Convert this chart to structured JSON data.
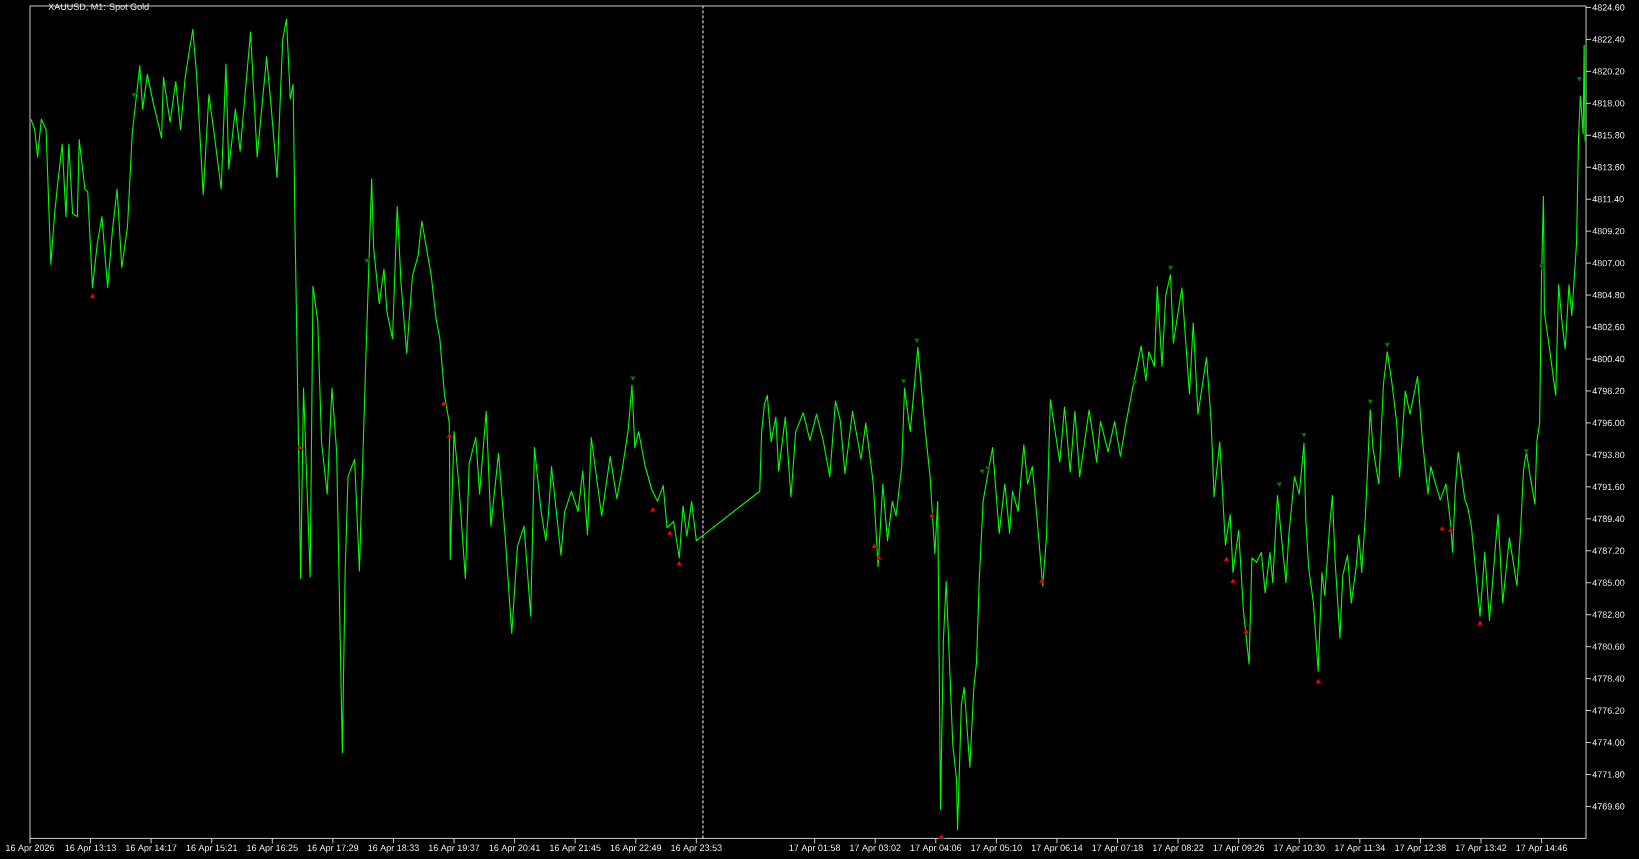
{
  "chart_data": {
    "type": "line",
    "title": "XAUUSD, M1: Spot Gold",
    "xlim": [
      "2026-04-16T12:09",
      "2026-04-17T15:33"
    ],
    "xticks": [
      {
        "value": "2026-04-16T12:09",
        "label": "16 Apr 2026"
      },
      {
        "value": "2026-04-16T13:13",
        "label": "16 Apr 13:13"
      },
      {
        "value": "2026-04-16T14:17",
        "label": "16 Apr 14:17"
      },
      {
        "value": "2026-04-16T15:21",
        "label": "16 Apr 15:21"
      },
      {
        "value": "2026-04-16T16:25",
        "label": "16 Apr 16:25"
      },
      {
        "value": "2026-04-16T17:29",
        "label": "16 Apr 17:29"
      },
      {
        "value": "2026-04-16T18:33",
        "label": "16 Apr 18:33"
      },
      {
        "value": "2026-04-16T19:37",
        "label": "16 Apr 19:37"
      },
      {
        "value": "2026-04-16T20:41",
        "label": "16 Apr 20:41"
      },
      {
        "value": "2026-04-16T21:45",
        "label": "16 Apr 21:45"
      },
      {
        "value": "2026-04-16T22:49",
        "label": "16 Apr 22:49"
      },
      {
        "value": "2026-04-16T23:53",
        "label": "16 Apr 23:53"
      },
      {
        "value": "2026-04-17T01:58",
        "label": "17 Apr 01:58"
      },
      {
        "value": "2026-04-17T03:02",
        "label": "17 Apr 03:02"
      },
      {
        "value": "2026-04-17T04:06",
        "label": "17 Apr 04:06"
      },
      {
        "value": "2026-04-17T05:10",
        "label": "17 Apr 05:10"
      },
      {
        "value": "2026-04-17T06:14",
        "label": "17 Apr 06:14"
      },
      {
        "value": "2026-04-17T07:18",
        "label": "17 Apr 07:18"
      },
      {
        "value": "2026-04-17T08:22",
        "label": "17 Apr 08:22"
      },
      {
        "value": "2026-04-17T09:26",
        "label": "17 Apr 09:26"
      },
      {
        "value": "2026-04-17T10:30",
        "label": "17 Apr 10:30"
      },
      {
        "value": "2026-04-17T11:34",
        "label": "17 Apr 11:34"
      },
      {
        "value": "2026-04-17T12:38",
        "label": "17 Apr 12:38"
      },
      {
        "value": "2026-04-17T13:42",
        "label": "17 Apr 13:42"
      },
      {
        "value": "2026-04-17T14:46",
        "label": "17 Apr 14:46"
      }
    ],
    "ylim": [
      4767.4,
      4824.7
    ],
    "yticks": [
      {
        "value": 4769.6,
        "label": "4769.60"
      },
      {
        "value": 4771.8,
        "label": "4771.80"
      },
      {
        "value": 4774.0,
        "label": "4774.00"
      },
      {
        "value": 4776.2,
        "label": "4776.20"
      },
      {
        "value": 4778.4,
        "label": "4778.40"
      },
      {
        "value": 4780.6,
        "label": "4780.60"
      },
      {
        "value": 4782.8,
        "label": "4782.80"
      },
      {
        "value": 4785.0,
        "label": "4785.00"
      },
      {
        "value": 4787.2,
        "label": "4787.20"
      },
      {
        "value": 4789.4,
        "label": "4789.40"
      },
      {
        "value": 4791.6,
        "label": "4791.60"
      },
      {
        "value": 4793.8,
        "label": "4793.80"
      },
      {
        "value": 4796.0,
        "label": "4796.00"
      },
      {
        "value": 4798.2,
        "label": "4798.20"
      },
      {
        "value": 4800.4,
        "label": "4800.40"
      },
      {
        "value": 4802.6,
        "label": "4802.60"
      },
      {
        "value": 4804.8,
        "label": "4804.80"
      },
      {
        "value": 4807.0,
        "label": "4807.00"
      },
      {
        "value": 4809.2,
        "label": "4809.20"
      },
      {
        "value": 4811.4,
        "label": "4811.40"
      },
      {
        "value": 4813.6,
        "label": "4813.60"
      },
      {
        "value": 4815.8,
        "label": "4815.80"
      },
      {
        "value": 4818.0,
        "label": "4818.00"
      },
      {
        "value": 4820.2,
        "label": "4820.20"
      },
      {
        "value": 4822.4,
        "label": "4822.40"
      },
      {
        "value": 4824.6,
        "label": "4824.60"
      }
    ],
    "ref_lines": [
      {
        "axis": "x",
        "value": "2026-04-17T00:00",
        "color": "#ffffff",
        "line_style": "dashed"
      }
    ],
    "series": [
      {
        "color": "#00ff00",
        "x": [
          "2026-04-16T12:10",
          "2026-04-16T12:14",
          "2026-04-16T12:17",
          "2026-04-16T12:21",
          "2026-04-16T12:26",
          "2026-04-16T12:31",
          "2026-04-16T12:35",
          "2026-04-16T12:38",
          "2026-04-16T12:43",
          "2026-04-16T12:47",
          "2026-04-16T12:50",
          "2026-04-16T12:54",
          "2026-04-16T12:59",
          "2026-04-16T13:01",
          "2026-04-16T13:04",
          "2026-04-16T13:07",
          "2026-04-16T13:10",
          "2026-04-16T13:15",
          "2026-04-16T13:20",
          "2026-04-16T13:25",
          "2026-04-16T13:31",
          "2026-04-16T13:36",
          "2026-04-16T13:41",
          "2026-04-16T13:46",
          "2026-04-16T13:52",
          "2026-04-16T13:57",
          "2026-04-16T14:05",
          "2026-04-16T14:08",
          "2026-04-16T14:13",
          "2026-04-16T14:19",
          "2026-04-16T14:28",
          "2026-04-16T14:30",
          "2026-04-16T14:37",
          "2026-04-16T14:43",
          "2026-04-16T14:48",
          "2026-04-16T14:53",
          "2026-04-16T15:01",
          "2026-04-16T15:05",
          "2026-04-16T15:12",
          "2026-04-16T15:18",
          "2026-04-16T15:23",
          "2026-04-16T15:31",
          "2026-04-16T15:36",
          "2026-04-16T15:39",
          "2026-04-16T15:46",
          "2026-04-16T15:51",
          "2026-04-16T16:02",
          "2026-04-16T16:09",
          "2026-04-16T16:19",
          "2026-04-16T16:24",
          "2026-04-16T16:30",
          "2026-04-16T16:36",
          "2026-04-16T16:40",
          "2026-04-16T16:44",
          "2026-04-16T16:47",
          "2026-04-16T16:49",
          "2026-04-16T16:55",
          "2026-04-16T16:58",
          "2026-04-16T17:05",
          "2026-04-16T17:08",
          "2026-04-16T17:13",
          "2026-04-16T17:17",
          "2026-04-16T17:23",
          "2026-04-16T17:28",
          "2026-04-16T17:33",
          "2026-04-16T17:39",
          "2026-04-16T17:42",
          "2026-04-16T17:45",
          "2026-04-16T17:52",
          "2026-04-16T17:57",
          "2026-04-16T18:04",
          "2026-04-16T18:10",
          "2026-04-16T18:12",
          "2026-04-16T18:18",
          "2026-04-16T18:23",
          "2026-04-16T18:26",
          "2026-04-16T18:32",
          "2026-04-16T18:37",
          "2026-04-16T18:41",
          "2026-04-16T18:47",
          "2026-04-16T18:53",
          "2026-04-16T18:59",
          "2026-04-16T19:03",
          "2026-04-16T19:08",
          "2026-04-16T19:13",
          "2026-04-16T19:18",
          "2026-04-16T19:22",
          "2026-04-16T19:27",
          "2026-04-16T19:32",
          "2026-04-16T19:33",
          "2026-04-16T19:37",
          "2026-04-16T19:42",
          "2026-04-16T19:49",
          "2026-04-16T19:53",
          "2026-04-16T20:00",
          "2026-04-16T20:04",
          "2026-04-16T20:11",
          "2026-04-16T20:16",
          "2026-04-16T20:24",
          "2026-04-16T20:31",
          "2026-04-16T20:38",
          "2026-04-16T20:44",
          "2026-04-16T20:51",
          "2026-04-16T20:58",
          "2026-04-16T21:02",
          "2026-04-16T21:09",
          "2026-04-16T21:14",
          "2026-04-16T21:17",
          "2026-04-16T21:20",
          "2026-04-16T21:30",
          "2026-04-16T21:34",
          "2026-04-16T21:41",
          "2026-04-16T21:48",
          "2026-04-16T21:53",
          "2026-04-16T21:58",
          "2026-04-16T22:02",
          "2026-04-16T22:13",
          "2026-04-16T22:22",
          "2026-04-16T22:29",
          "2026-04-16T22:34",
          "2026-04-16T22:41",
          "2026-04-16T22:45",
          "2026-04-16T22:48",
          "2026-04-16T22:52",
          "2026-04-16T22:59",
          "2026-04-16T23:06",
          "2026-04-16T23:12",
          "2026-04-16T23:18",
          "2026-04-16T23:22",
          "2026-04-16T23:29",
          "2026-04-16T23:35",
          "2026-04-16T23:39",
          "2026-04-16T23:43",
          "2026-04-16T23:48",
          "2026-04-16T23:53",
          "2026-04-17T01:00",
          "2026-04-17T01:02",
          "2026-04-17T01:05",
          "2026-04-17T01:08",
          "2026-04-17T01:12",
          "2026-04-17T01:17",
          "2026-04-17T01:20",
          "2026-04-17T01:27",
          "2026-04-17T01:33",
          "2026-04-17T01:38",
          "2026-04-17T01:46",
          "2026-04-17T01:53",
          "2026-04-17T02:00",
          "2026-04-17T02:07",
          "2026-04-17T02:14",
          "2026-04-17T02:20",
          "2026-04-17T02:25",
          "2026-04-17T02:30",
          "2026-04-17T02:38",
          "2026-04-17T02:47",
          "2026-04-17T02:52",
          "2026-04-17T03:00",
          "2026-04-17T03:05",
          "2026-04-17T03:10",
          "2026-04-17T03:15",
          "2026-04-17T03:20",
          "2026-04-17T03:24",
          "2026-04-17T03:30",
          "2026-04-17T03:33",
          "2026-04-17T03:39",
          "2026-04-17T03:47",
          "2026-04-17T03:54",
          "2026-04-17T04:00",
          "2026-04-17T04:05",
          "2026-04-17T04:08",
          "2026-04-17T04:11",
          "2026-04-17T04:14",
          "2026-04-17T04:17",
          "2026-04-17T04:21",
          "2026-04-17T04:24",
          "2026-04-17T04:28",
          "2026-04-17T04:29",
          "2026-04-17T04:33",
          "2026-04-17T04:36",
          "2026-04-17T04:42",
          "2026-04-17T04:46",
          "2026-04-17T04:49",
          "2026-04-17T04:52",
          "2026-04-17T04:56",
          "2026-04-17T05:01",
          "2026-04-17T05:06",
          "2026-04-17T05:13",
          "2026-04-17T05:19",
          "2026-04-17T05:24",
          "2026-04-17T05:27",
          "2026-04-17T05:33",
          "2026-04-17T05:39",
          "2026-04-17T05:43",
          "2026-04-17T05:48",
          "2026-04-17T05:53",
          "2026-04-17T05:59",
          "2026-04-17T06:03",
          "2026-04-17T06:07",
          "2026-04-17T06:17",
          "2026-04-17T06:22",
          "2026-04-17T06:28",
          "2026-04-17T06:33",
          "2026-04-17T06:38",
          "2026-04-17T06:48",
          "2026-04-17T06:56",
          "2026-04-17T07:00",
          "2026-04-17T07:08",
          "2026-04-17T07:15",
          "2026-04-17T07:21",
          "2026-04-17T07:27",
          "2026-04-17T07:34",
          "2026-04-17T07:43",
          "2026-04-17T07:48",
          "2026-04-17T07:51",
          "2026-04-17T07:57",
          "2026-04-17T08:00",
          "2026-04-17T08:05",
          "2026-04-17T08:09",
          "2026-04-17T08:14",
          "2026-04-17T08:17",
          "2026-04-17T08:26",
          "2026-04-17T08:34",
          "2026-04-17T08:38",
          "2026-04-17T08:43",
          "2026-04-17T08:52",
          "2026-04-17T08:57",
          "2026-04-17T09:00",
          "2026-04-17T09:06",
          "2026-04-17T09:12",
          "2026-04-17T09:17",
          "2026-04-17T09:20",
          "2026-04-17T09:26",
          "2026-04-17T09:31",
          "2026-04-17T09:37",
          "2026-04-17T09:40",
          "2026-04-17T09:45",
          "2026-04-17T09:50",
          "2026-04-17T09:54",
          "2026-04-17T09:59",
          "2026-04-17T10:02",
          "2026-04-17T10:07",
          "2026-04-17T10:12",
          "2026-04-17T10:16",
          "2026-04-17T10:19",
          "2026-04-17T10:25",
          "2026-04-17T10:30",
          "2026-04-17T10:35",
          "2026-04-17T10:37",
          "2026-04-17T10:40",
          "2026-04-17T10:45",
          "2026-04-17T10:50",
          "2026-04-17T10:54",
          "2026-04-17T10:57",
          "2026-04-17T11:02",
          "2026-04-17T11:05",
          "2026-04-17T11:08",
          "2026-04-17T11:13",
          "2026-04-17T11:16",
          "2026-04-17T11:21",
          "2026-04-17T11:25",
          "2026-04-17T11:30",
          "2026-04-17T11:33",
          "2026-04-17T11:36",
          "2026-04-17T11:40",
          "2026-04-17T11:45",
          "2026-04-17T11:48",
          "2026-04-17T11:54",
          "2026-04-17T11:59",
          "2026-04-17T12:03",
          "2026-04-17T12:08",
          "2026-04-17T12:13",
          "2026-04-17T12:16",
          "2026-04-17T12:22",
          "2026-04-17T12:27",
          "2026-04-17T12:35",
          "2026-04-17T12:40",
          "2026-04-17T12:46",
          "2026-04-17T12:49",
          "2026-04-17T12:54",
          "2026-04-17T12:59",
          "2026-04-17T13:05",
          "2026-04-17T13:10",
          "2026-04-17T13:12",
          "2026-04-17T13:15",
          "2026-04-17T13:18",
          "2026-04-17T13:25",
          "2026-04-17T13:28",
          "2026-04-17T13:32",
          "2026-04-17T13:41",
          "2026-04-17T13:46",
          "2026-04-17T13:51",
          "2026-04-17T14:00",
          "2026-04-17T14:05",
          "2026-04-17T14:12",
          "2026-04-17T14:20",
          "2026-04-17T14:24",
          "2026-04-17T14:27",
          "2026-04-17T14:30",
          "2026-04-17T14:34",
          "2026-04-17T14:39",
          "2026-04-17T14:41",
          "2026-04-17T14:44",
          "2026-04-17T14:46",
          "2026-04-17T14:48",
          "2026-04-17T14:49",
          "2026-04-17T14:54",
          "2026-04-17T15:01",
          "2026-04-17T15:04",
          "2026-04-17T15:08",
          "2026-04-17T15:11",
          "2026-04-17T15:15",
          "2026-04-17T15:18",
          "2026-04-17T15:23",
          "2026-04-17T15:25",
          "2026-04-17T15:27",
          "2026-04-17T15:30",
          "2026-04-17T15:31",
          "2026-04-17T15:32"
        ],
        "values": [
          4816.9,
          4816.2,
          4814.3,
          4816.9,
          4816.2,
          4806.9,
          4810.4,
          4812.3,
          4815.2,
          4810.2,
          4815.2,
          4810.4,
          4810.2,
          4815.5,
          4813.8,
          4812.1,
          4811.9,
          4805.3,
          4808.3,
          4810.2,
          4805.3,
          4809.2,
          4812.1,
          4806.7,
          4809.5,
          4815.9,
          4820.6,
          4817.6,
          4820.0,
          4818.1,
          4815.6,
          4819.8,
          4816.7,
          4819.5,
          4816.2,
          4819.8,
          4823.1,
          4820.0,
          4811.7,
          4818.6,
          4816.2,
          4812.1,
          4820.7,
          4813.5,
          4817.6,
          4814.7,
          4822.9,
          4814.3,
          4821.2,
          4817.6,
          4812.9,
          4822.4,
          4823.8,
          4818.3,
          4819.3,
          4809.5,
          4785.3,
          4798.4,
          4785.4,
          4805.4,
          4803.0,
          4794.7,
          4791.1,
          4798.4,
          4794.0,
          4773.3,
          4785.8,
          4792.3,
          4793.5,
          4785.8,
          4800.8,
          4812.8,
          4808.1,
          4804.2,
          4806.6,
          4803.7,
          4801.8,
          4810.9,
          4805.6,
          4800.8,
          4806.1,
          4807.5,
          4809.9,
          4808.0,
          4806.1,
          4803.2,
          4801.8,
          4797.9,
          4796.0,
          4786.6,
          4795.4,
          4791.8,
          4785.3,
          4793.2,
          4795.0,
          4791.1,
          4796.8,
          4788.9,
          4793.9,
          4788.2,
          4781.5,
          4787.5,
          4788.9,
          4782.7,
          4794.3,
          4789.9,
          4787.9,
          4789.9,
          4793.0,
          4786.9,
          4789.9,
          4791.3,
          4789.9,
          4792.7,
          4788.3,
          4795.0,
          4789.6,
          4793.7,
          4790.8,
          4792.5,
          4795.5,
          4798.6,
          4794.3,
          4795.4,
          4793.0,
          4791.4,
          4790.6,
          4791.7,
          4788.8,
          4789.2,
          4786.7,
          4790.3,
          4788.2,
          4790.6,
          4787.9,
          4791.3,
          4795.4,
          4797.3,
          4797.9,
          4794.7,
          4796.4,
          4792.7,
          4796.4,
          4790.9,
          4795.4,
          4796.7,
          4794.8,
          4796.6,
          4794.8,
          4792.3,
          4797.5,
          4796.2,
          4792.5,
          4796.8,
          4793.5,
          4796.0,
          4791.8,
          4786.1,
          4791.8,
          4787.9,
          4790.6,
          4789.6,
          4793.0,
          4798.4,
          4795.4,
          4801.2,
          4796.0,
          4792.3,
          4787.0,
          4790.6,
          4769.4,
          4781.0,
          4785.1,
          4778.6,
          4773.8,
          4771.4,
          4768.0,
          4776.6,
          4777.8,
          4772.3,
          4777.6,
          4779.5,
          4785.3,
          4790.6,
          4792.5,
          4794.3,
          4788.4,
          4791.8,
          4788.4,
          4791.3,
          4789.9,
          4794.5,
          4791.8,
          4793.0,
          4789.4,
          4784.8,
          4788.2,
          4797.6,
          4793.3,
          4797.1,
          4792.6,
          4796.8,
          4792.3,
          4796.9,
          4793.3,
          4796.1,
          4794.0,
          4796.1,
          4793.7,
          4796.0,
          4798.4,
          4801.3,
          4798.9,
          4800.9,
          4799.9,
          4805.4,
          4799.9,
          4804.8,
          4806.2,
          4801.5,
          4805.3,
          4798.0,
          4802.9,
          4796.6,
          4800.5,
          4796.0,
          4790.9,
          4794.7,
          4787.6,
          4789.7,
          4785.7,
          4788.6,
          4783.1,
          4779.4,
          4786.7,
          4786.4,
          4787.1,
          4784.3,
          4787.1,
          4785.0,
          4791.0,
          4787.6,
          4785.0,
          4788.3,
          4792.3,
          4791.1,
          4794.6,
          4789.3,
          4786.0,
          4783.6,
          4778.9,
          4785.7,
          4784.1,
          4788.8,
          4791.0,
          4786.4,
          4781.2,
          4785.5,
          4786.9,
          4783.6,
          4786.0,
          4788.3,
          4785.7,
          4789.7,
          4796.9,
          4794.2,
          4791.8,
          4798.7,
          4800.9,
          4798.7,
          4796.0,
          4792.3,
          4798.2,
          4796.6,
          4799.2,
          4794.9,
          4791.1,
          4793.0,
          4791.8,
          4790.7,
          4791.8,
          4789.0,
          4787.1,
          4791.6,
          4794.0,
          4790.7,
          4790.2,
          4788.8,
          4782.7,
          4787.1,
          4782.4,
          4789.7,
          4783.6,
          4788.1,
          4784.8,
          4788.8,
          4792.8,
          4794.0,
          4792.3,
          4790.4,
          4794.7,
          4796.0,
          4806.2,
          4811.6,
          4803.6,
          4801.3,
          4797.9,
          4805.5,
          4802.7,
          4801.1,
          4805.5,
          4803.4,
          4808.4,
          4815.4,
          4818.5,
          4815.9,
          4822.0,
          4815.4
        ]
      },
      {
        "type": "scatter",
        "color": "#ff0000",
        "marker": "triangle",
        "x": [
          "2026-04-16T13:15",
          "2026-04-16T16:54",
          "2026-04-16T19:26",
          "2026-04-16T19:32",
          "2026-04-16T23:07",
          "2026-04-16T23:25",
          "2026-04-16T23:35",
          "2026-04-17T03:01",
          "2026-04-17T03:06",
          "2026-04-17T04:02",
          "2026-04-17T04:12",
          "2026-04-17T05:58",
          "2026-04-17T09:13",
          "2026-04-17T09:20",
          "2026-04-17T09:34",
          "2026-04-17T10:50",
          "2026-04-17T13:01",
          "2026-04-17T13:10",
          "2026-04-17T13:41"
        ],
        "values": [
          4804.7,
          4794.3,
          4797.3,
          4795.1,
          4790.0,
          4788.4,
          4786.3,
          4787.5,
          4786.7,
          4789.6,
          4767.5,
          4785.1,
          4786.6,
          4785.1,
          4781.6,
          4778.2,
          4788.7,
          4788.6,
          4782.2
        ]
      },
      {
        "type": "scatter",
        "color": "#008000",
        "marker": "triangle",
        "x": [
          "2026-04-16T13:59",
          "2026-04-16T18:05",
          "2026-04-16T22:46",
          "2026-04-17T03:32",
          "2026-04-17T03:46",
          "2026-04-17T04:55",
          "2026-04-17T05:01",
          "2026-04-17T07:36",
          "2026-04-17T08:14",
          "2026-04-17T10:09",
          "2026-04-17T10:35",
          "2026-04-17T11:45",
          "2026-04-17T12:03",
          "2026-04-17T14:30",
          "2026-04-17T14:46",
          "2026-04-17T15:26"
        ],
        "values": [
          4818.6,
          4807.2,
          4799.1,
          4798.9,
          4801.7,
          4792.7,
          4792.9,
          4798.8,
          4806.7,
          4791.8,
          4795.2,
          4797.5,
          4801.4,
          4794.1,
          4806.8,
          4819.7
        ]
      }
    ]
  }
}
